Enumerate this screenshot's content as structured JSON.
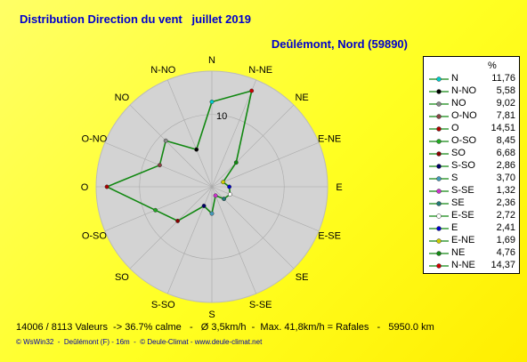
{
  "title": "Distribution Direction du vent   juillet 2019",
  "location": "Deûlémont, Nord (59890)",
  "stats": "14006 / 8113 Valeurs  -> 36.7% calme   -   Ø 3,5km/h  -  Max. 41,8km/h = Rafales   -   5950.0 km",
  "footer": "© WsWin32  -  Deûlémont (F) - 16m  -  © Deule-Climat - www.deule-climat.net",
  "legend_header": "%",
  "colors": {
    "background": "#ffff33",
    "disc": "#d3d3d3",
    "line": "#118811",
    "text": "#0000cc"
  },
  "chart_data": {
    "type": "radar",
    "title": "Distribution Direction du vent   juillet 2019",
    "subtitle": "Deûlémont, Nord (59890)",
    "unit": "%",
    "ring_label": "10",
    "rmax": 16,
    "directions": [
      "N",
      "N-NE",
      "NE",
      "E-NE",
      "E",
      "E-SE",
      "SE",
      "S-SE",
      "S",
      "S-SO",
      "SO",
      "O-SO",
      "O",
      "O-NO",
      "NO",
      "N-NO"
    ],
    "values": [
      11.76,
      14.37,
      4.76,
      1.69,
      2.41,
      2.72,
      2.36,
      1.32,
      3.7,
      2.86,
      6.68,
      8.45,
      14.51,
      7.81,
      9.02,
      5.58
    ],
    "legend": [
      {
        "name": "N",
        "value": "11,76",
        "color": "#00cccc"
      },
      {
        "name": "N-NO",
        "value": "5,58",
        "color": "#000000"
      },
      {
        "name": "NO",
        "value": "9,02",
        "color": "#888888"
      },
      {
        "name": "O-NO",
        "value": "7,81",
        "color": "#884444"
      },
      {
        "name": "O",
        "value": "14,51",
        "color": "#aa0000"
      },
      {
        "name": "O-SO",
        "value": "8,45",
        "color": "#22aa22"
      },
      {
        "name": "SO",
        "value": "6,68",
        "color": "#880000"
      },
      {
        "name": "S-SO",
        "value": "2,86",
        "color": "#000066"
      },
      {
        "name": "S",
        "value": "3,70",
        "color": "#4499bb"
      },
      {
        "name": "S-SE",
        "value": "1,32",
        "color": "#cc33cc"
      },
      {
        "name": "SE",
        "value": "2,36",
        "color": "#227777"
      },
      {
        "name": "E-SE",
        "value": "2,72",
        "color": "#ffffff"
      },
      {
        "name": "E",
        "value": "2,41",
        "color": "#0000cc"
      },
      {
        "name": "E-NE",
        "value": "1,69",
        "color": "#cccc00"
      },
      {
        "name": "NE",
        "value": "4,76",
        "color": "#118811"
      },
      {
        "name": "N-NE",
        "value": "14,37",
        "color": "#cc0000"
      }
    ]
  }
}
